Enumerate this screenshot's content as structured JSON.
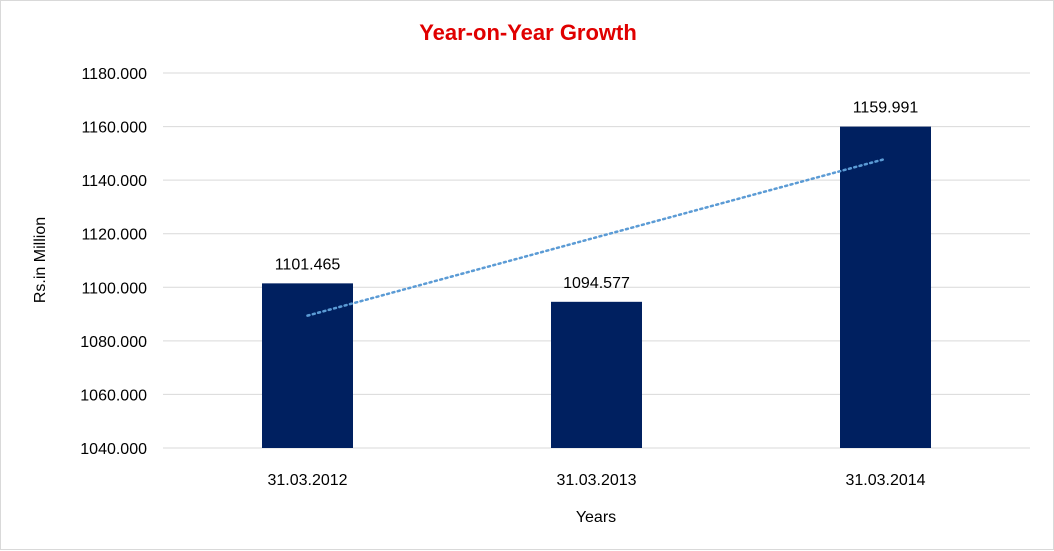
{
  "chart_data": {
    "type": "bar",
    "title": "Year-on-Year Growth",
    "xlabel": "Years",
    "ylabel": "Rs.in Million",
    "categories": [
      "31.03.2012",
      "31.03.2013",
      "31.03.2014"
    ],
    "values": [
      1101.465,
      1094.577,
      1159.991
    ],
    "data_labels": [
      "1101.465",
      "1094.577",
      "1159.991"
    ],
    "ylim": [
      1040,
      1180
    ],
    "y_ticks": [
      1040,
      1060,
      1080,
      1100,
      1120,
      1140,
      1160,
      1180
    ],
    "y_tick_labels": [
      "1040.000",
      "1060.000",
      "1080.000",
      "1100.000",
      "1120.000",
      "1140.000",
      "1160.000",
      "1180.000"
    ],
    "trendline": {
      "type": "linear",
      "style": "dotted"
    },
    "grid": true,
    "legend": "none",
    "colors": {
      "bar": "#002060",
      "title": "#e00000",
      "trendline": "#5b9bd5",
      "grid": "#d9d9d9"
    }
  }
}
